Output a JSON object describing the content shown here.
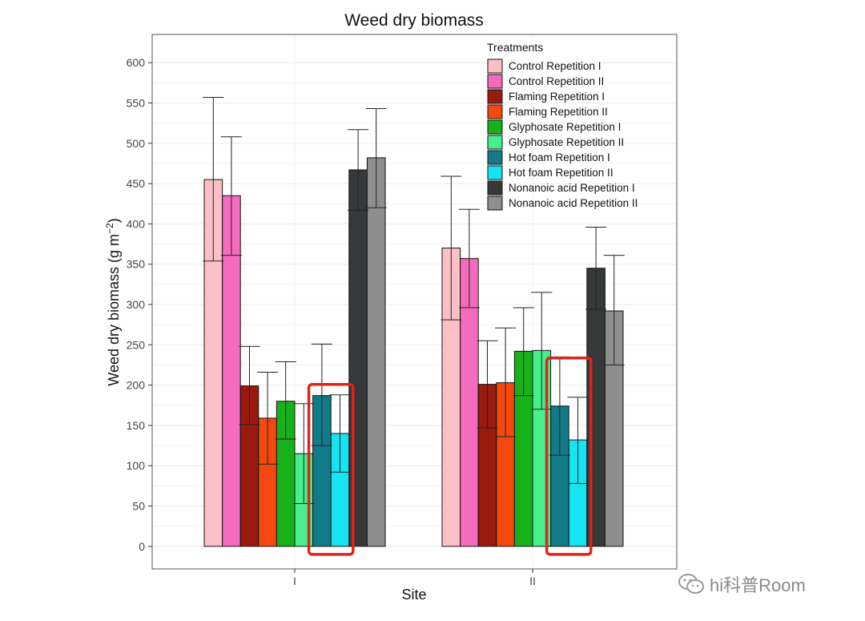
{
  "chart_data": {
    "type": "bar",
    "title": "Weed dry biomass",
    "xlabel": "Site",
    "ylabel": "Weed dry biomass (g m",
    "ylabel_superscript": "−2",
    "ylabel_close": ")",
    "ylim": [
      -28,
      635
    ],
    "yticks": [
      0,
      50,
      100,
      150,
      200,
      250,
      300,
      350,
      400,
      450,
      500,
      550,
      600
    ],
    "grid": true,
    "categories": [
      "I",
      "II"
    ],
    "legend": {
      "title": "Treatments",
      "position": "top-right"
    },
    "series": [
      {
        "name": "Control Repetition I",
        "color": "#FBC0C6",
        "values": [
          455,
          370
        ],
        "err_low": [
          354,
          281
        ],
        "err_high": [
          557,
          459
        ]
      },
      {
        "name": "Control Repetition II",
        "color": "#F56BBD",
        "values": [
          435,
          357
        ],
        "err_low": [
          361,
          296
        ],
        "err_high": [
          508,
          418
        ]
      },
      {
        "name": "Flaming Repetition I",
        "color": "#9A1A0F",
        "values": [
          199,
          201
        ],
        "err_low": [
          151,
          147
        ],
        "err_high": [
          248,
          255
        ]
      },
      {
        "name": "Flaming Repetition II",
        "color": "#F4490E",
        "values": [
          159,
          203
        ],
        "err_low": [
          102,
          136
        ],
        "err_high": [
          216,
          271
        ]
      },
      {
        "name": "Glyphosate Repetition I",
        "color": "#17B21A",
        "values": [
          180,
          242
        ],
        "err_low": [
          133,
          187
        ],
        "err_high": [
          229,
          296
        ]
      },
      {
        "name": "Glyphosate Repetition II",
        "color": "#46EE8C",
        "values": [
          115,
          243
        ],
        "err_low": [
          53,
          170
        ],
        "err_high": [
          177,
          315
        ]
      },
      {
        "name": "Hot foam Repetition I",
        "color": "#127B89",
        "values": [
          187,
          174
        ],
        "err_low": [
          125,
          113
        ],
        "err_high": [
          251,
          235
        ]
      },
      {
        "name": "Hot foam Repetition II",
        "color": "#17E4F2",
        "values": [
          140,
          132
        ],
        "err_low": [
          92,
          78
        ],
        "err_high": [
          188,
          185
        ]
      },
      {
        "name": "Nonanoic acid Repetition I",
        "color": "#363839",
        "values": [
          467,
          345
        ],
        "err_low": [
          417,
          294
        ],
        "err_high": [
          517,
          396
        ]
      },
      {
        "name": "Nonanoic acid Repetition II",
        "color": "#8E8E8E",
        "values": [
          482,
          292
        ],
        "err_low": [
          420,
          225
        ],
        "err_high": [
          543,
          361
        ]
      }
    ],
    "highlight": {
      "series": [
        "Hot foam Repetition I",
        "Hot foam Repetition II"
      ],
      "color": "#E2231A"
    }
  },
  "watermark": {
    "text": "hi科普Room",
    "icon": "wechat-icon"
  }
}
